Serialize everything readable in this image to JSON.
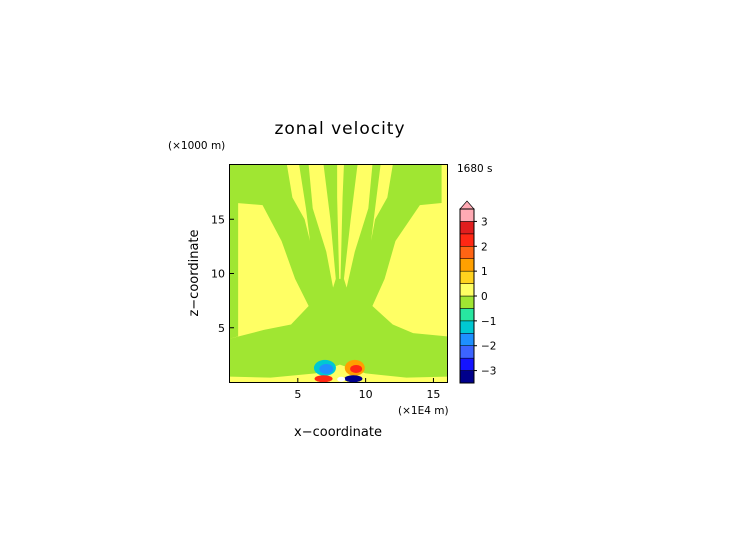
{
  "chart_data": {
    "type": "contour",
    "title": "zonal velocity",
    "xlabel": "x−coordinate",
    "ylabel": "z−coordinate",
    "x_unit": "(×1E4 m)",
    "y_unit": "(×1000 m)",
    "time_label": "1680 s",
    "xlim": [
      0,
      16
    ],
    "ylim": [
      0,
      20
    ],
    "x_ticks": [
      5,
      10,
      15
    ],
    "y_ticks": [
      5,
      10,
      15
    ],
    "colorbar": {
      "levels": [
        -3.5,
        -3,
        -2.5,
        -2,
        -1.5,
        -1,
        -0.5,
        0,
        0.5,
        1,
        1.5,
        2,
        2.5,
        3,
        3.5
      ],
      "colors": [
        "#00008b",
        "#1414ff",
        "#3c64ff",
        "#1e90ff",
        "#00c8d2",
        "#28e6a0",
        "#a0e632",
        "#ffff64",
        "#ffd21e",
        "#ffa000",
        "#ff6414",
        "#ff2814",
        "#e11e1e",
        "#ffaab4"
      ],
      "tick_labels": [
        "−3",
        "−2",
        "−1",
        "0",
        "1",
        "2",
        "3"
      ],
      "tick_values": [
        -3,
        -2,
        -1,
        0,
        1,
        2,
        3
      ],
      "extend": "max"
    },
    "background_value": 0.25,
    "field_value_green": -0.25,
    "field_value_yellow": 0.25,
    "field_value_cyan": -1.25,
    "field_value_blue": -1.75,
    "field_value_darkblue": -3.25,
    "field_value_orange": 1.25,
    "field_value_red": 2.25
  }
}
